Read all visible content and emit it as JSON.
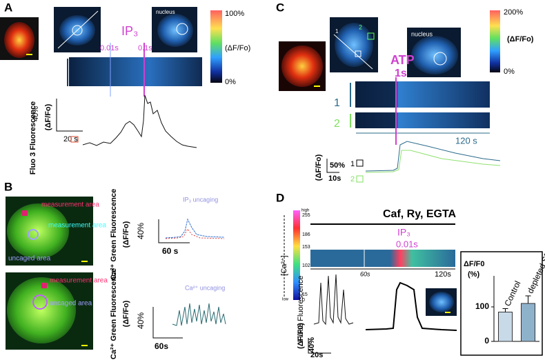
{
  "panels": {
    "a": {
      "label": "A",
      "nucleus": "nucleus",
      "stimulus": "IP₃",
      "times": [
        "0.01s",
        "0.1s"
      ],
      "colorbar": [
        "100%",
        "(ΔF/Fo)",
        "0%"
      ],
      "y_label": "Fluo 3 Fluorescence",
      "y_unit": "(ΔF/Fo)",
      "scale_y": "40%",
      "scale_x": "20 s"
    },
    "b": {
      "label": "B",
      "top": {
        "measurement_area_1": "measurement area",
        "measurement_area_2": "measurement area",
        "uncaged_area": "uncaged area",
        "y_label": "Ca²⁺ Green Fluorescence",
        "y_unit": "(ΔF/Fo)",
        "scale_y": "40%",
        "scale_x": "60 s",
        "stimulus": "IP₃ uncaging"
      },
      "bottom": {
        "measurement_area": "measurement area",
        "uncaged_area": "uncaged area",
        "y_label": "Ca²⁺ Green Fluorescence",
        "y_unit": "(ΔF/Fo)",
        "scale_y": "40%",
        "scale_x": "60s",
        "stimulus": "Ca²⁺ uncaging"
      }
    },
    "c": {
      "label": "C",
      "colorbar": [
        "200%",
        "(ΔF/Fo)",
        "0%"
      ],
      "nucleus": "nucleus",
      "roi": [
        "1",
        "2"
      ],
      "stimulus": "ATP",
      "duration": "1s",
      "scan_labels": [
        "1",
        "2"
      ],
      "scale_time": "120 s",
      "y_unit": "(ΔF/Fo)",
      "scale_y": "50%",
      "scale_x": "10s",
      "trace_labels": [
        "1",
        "2"
      ]
    },
    "d": {
      "label": "D",
      "condition": "Caf, Ry, EGTA",
      "stimulus": "IP₃",
      "duration": "0.01s",
      "colorbar": {
        "title": "[Ca²⁺]",
        "labels": [
          "high",
          "255",
          "186",
          "153",
          "102",
          "15",
          "0",
          "low"
        ]
      },
      "scan_times": [
        "60s",
        "120s"
      ],
      "y_label": "Fluo3 Fluorescence",
      "y_unit": "(ΔF/F0)",
      "scale_y": "40%",
      "scale_x": "20s"
    }
  },
  "chart_data": {
    "type": "bar",
    "y_label": [
      "ΔF/F0",
      "(%)"
    ],
    "categories": [
      "Control",
      "depleted SR"
    ],
    "values": [
      85,
      110
    ],
    "errors": [
      10,
      22
    ],
    "colors": [
      "#c8dae8",
      "#8fb2cb"
    ],
    "ylim": [
      0,
      190
    ],
    "yticks": [
      0,
      100
    ]
  }
}
